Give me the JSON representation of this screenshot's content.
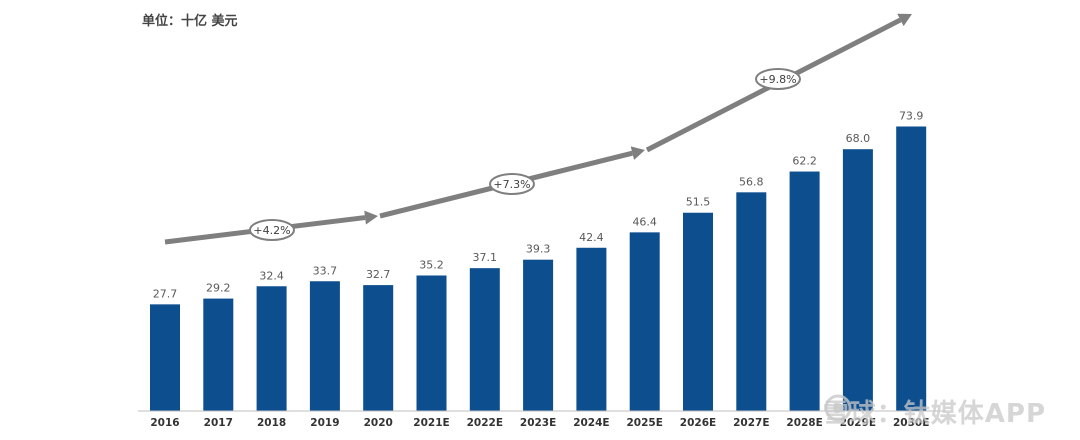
{
  "unit_label": "单位：十亿 美元",
  "watermark": "雪球：钛媒体APP",
  "colors": {
    "bar": "#0d4e8f",
    "arrow": "#7f7f7f",
    "value_label": "#595959",
    "tick_label": "#333333"
  },
  "chart_data": {
    "type": "bar",
    "categories": [
      "2016",
      "2017",
      "2018",
      "2019",
      "2020",
      "2021E",
      "2022E",
      "2023E",
      "2024E",
      "2025E",
      "2026E",
      "2027E",
      "2028E",
      "2029E",
      "2030E"
    ],
    "values": [
      27.7,
      29.2,
      32.4,
      33.7,
      32.7,
      35.2,
      37.1,
      39.3,
      42.4,
      46.4,
      51.5,
      56.8,
      62.2,
      68.0,
      73.9
    ],
    "ylim": [
      0,
      80
    ],
    "growth_annotations": [
      {
        "label": "+4.2%"
      },
      {
        "label": "+7.3%"
      },
      {
        "label": "+9.8%"
      }
    ]
  }
}
